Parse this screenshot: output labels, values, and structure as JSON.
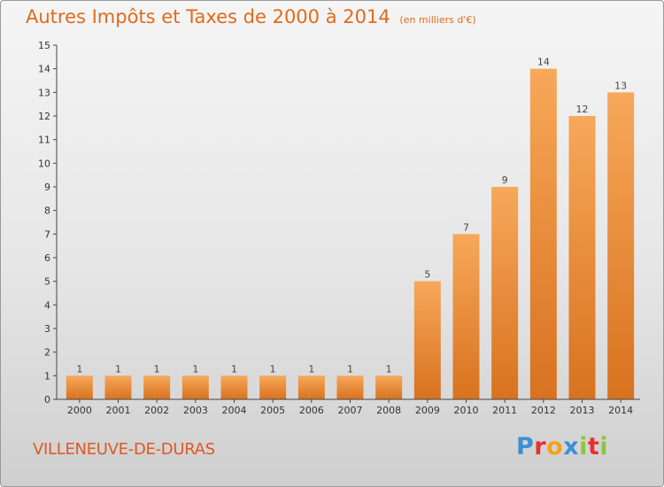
{
  "chart_title": "Autres Impôts et Taxes de 2000 à 2014",
  "chart_unit": "(en milliers d'€)",
  "commune": "VILLENEUVE-DE-DURAS",
  "logo": {
    "text": "Proxiti",
    "letters": [
      {
        "char": "P",
        "color": "#3d8fd6"
      },
      {
        "char": "r",
        "color": "#e8312f"
      },
      {
        "char": "o",
        "color": "#f2a21b"
      },
      {
        "char": "x",
        "color": "#3d8fd6"
      },
      {
        "char": "i",
        "color": "#8cc63f"
      },
      {
        "char": "t",
        "color": "#e8312f"
      },
      {
        "char": "i",
        "color": "#8cc63f"
      }
    ]
  },
  "chart_data": {
    "type": "bar",
    "title": "Autres Impôts et Taxes de 2000 à 2014",
    "subtitle": "(en milliers d'€)",
    "xlabel": "",
    "ylabel": "",
    "categories": [
      "2000",
      "2001",
      "2002",
      "2003",
      "2004",
      "2005",
      "2006",
      "2007",
      "2008",
      "2009",
      "2010",
      "2011",
      "2012",
      "2013",
      "2014"
    ],
    "values": [
      1,
      1,
      1,
      1,
      1,
      1,
      1,
      1,
      1,
      5,
      7,
      9,
      14,
      12,
      13
    ],
    "data_labels": [
      "1",
      "1",
      "1",
      "1",
      "1",
      "1",
      "1",
      "1",
      "1",
      "5",
      "7",
      "9",
      "14",
      "12",
      "13"
    ],
    "ylim": [
      0,
      15
    ],
    "yticks": [
      "0",
      "1",
      "2",
      "3",
      "4",
      "5",
      "6",
      "7",
      "8",
      "9",
      "10",
      "11",
      "12",
      "13",
      "14",
      "15"
    ],
    "grid": false,
    "legend": "none",
    "colors": {
      "bar_light": "#f6a458",
      "bar_dark": "#d8721f",
      "title": "#e06a1c",
      "axis": "#444444"
    }
  }
}
